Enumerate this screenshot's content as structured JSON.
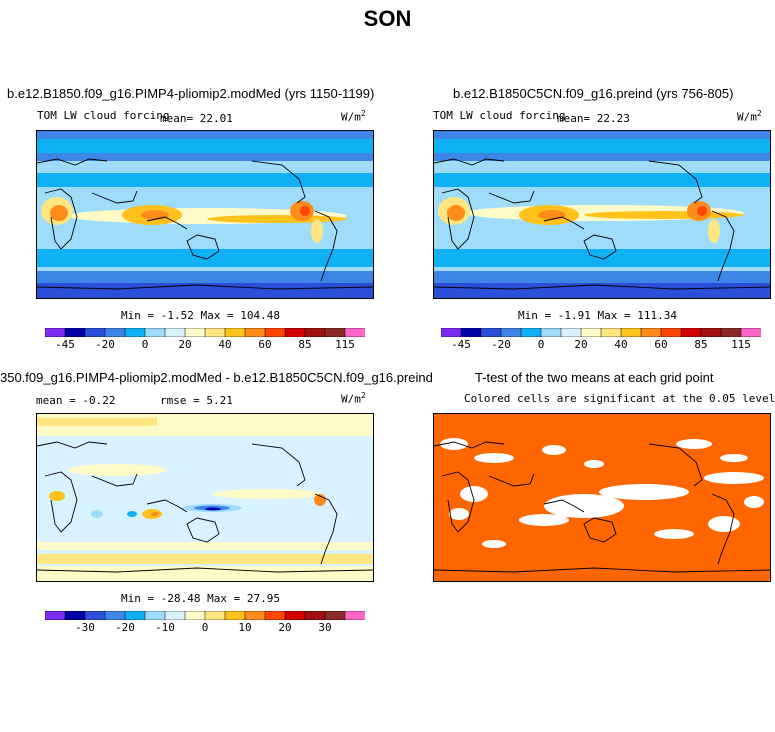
{
  "title": "SON",
  "colors": {
    "fill_bg": "#ace7ff",
    "ocean_ttest": "#ff6600",
    "coast": "#000000",
    "colorbar": [
      "#7b2bf2",
      "#0000a8",
      "#2a4fd8",
      "#3d86e8",
      "#10b0f5",
      "#9fdcfa",
      "#d8f2ff",
      "#fffbc8",
      "#ffe680",
      "#ffc21a",
      "#ff8c1a",
      "#ff4500",
      "#d40000",
      "#a01010",
      "#8b2a2a",
      "#ff66c8"
    ]
  },
  "panels": [
    {
      "title": "b.e12.B1850.f09_g16.PIMP4-pliomip2.modMed (yrs 1150-1199)",
      "variable": "TOM LW cloud forcing",
      "stat_label": "mean=",
      "stat_value": "22.01",
      "units": "W/m",
      "units_sup": "2",
      "minmax": "Min =  -1.52 Max = 104.48"
    },
    {
      "title": "b.e12.B1850C5CN.f09_g16.preind (yrs 756-805)",
      "variable": "TOM LW cloud forcing",
      "stat_label": "mean=",
      "stat_value": "22.23",
      "units": "W/m",
      "units_sup": "2",
      "minmax": "Min =  -1.91 Max = 111.34"
    },
    {
      "title": "350.f09_g16.PIMP4-pliomip2.modMed - b.e12.B1850C5CN.f09_g16.preind",
      "stat_label": "mean =",
      "stat_value": "-0.22",
      "rmse_label": "rmse =",
      "rmse_value": "5.21",
      "units": "W/m",
      "units_sup": "2",
      "minmax": "Min = -28.48 Max =  27.95"
    },
    {
      "title": "T-test of the two means at each grid point",
      "subtitle": "Colored cells are significant at the 0.05 level"
    }
  ],
  "colorbar_labels_abs": [
    "-45",
    "-20",
    "0",
    "20",
    "40",
    "60",
    "85",
    "115"
  ],
  "colorbar_labels_diff": [
    "-30",
    "-20",
    "-10",
    "0",
    "10",
    "20",
    "30"
  ]
}
